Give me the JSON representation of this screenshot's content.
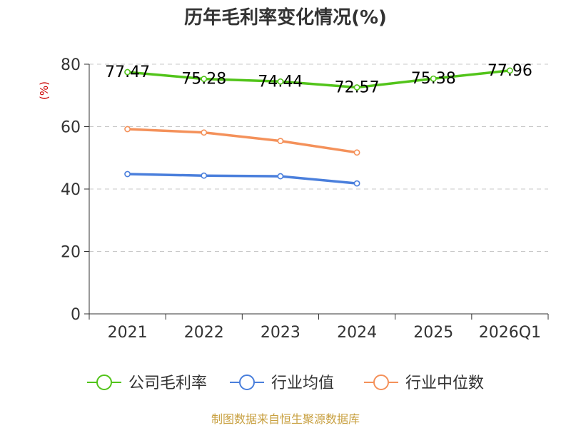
{
  "chart_data": {
    "type": "line",
    "title": "历年毛利率变化情况(%)",
    "unit_label": "(%)",
    "categories": [
      "2021",
      "2022",
      "2023",
      "2024",
      "2025",
      "2026Q1"
    ],
    "ylim": [
      0,
      80
    ],
    "yticks": [
      0,
      20,
      40,
      60,
      80
    ],
    "grid": true,
    "legend_position": "bottom",
    "series": [
      {
        "name": "公司毛利率",
        "color": "#52c41a",
        "values": [
          77.47,
          75.28,
          74.44,
          72.57,
          75.38,
          77.96
        ],
        "labels": [
          "77.47",
          "75.28",
          "74.44",
          "72.57",
          "75.38",
          "77.96"
        ]
      },
      {
        "name": "行业均值",
        "color": "#4a7fdc",
        "values": [
          44.8,
          44.3,
          44.1,
          41.8,
          null,
          null
        ]
      },
      {
        "name": "行业中位数",
        "color": "#f4915a",
        "values": [
          59.2,
          58.1,
          55.4,
          51.7,
          null,
          null
        ]
      }
    ],
    "source": "制图数据来自恒生聚源数据库"
  }
}
